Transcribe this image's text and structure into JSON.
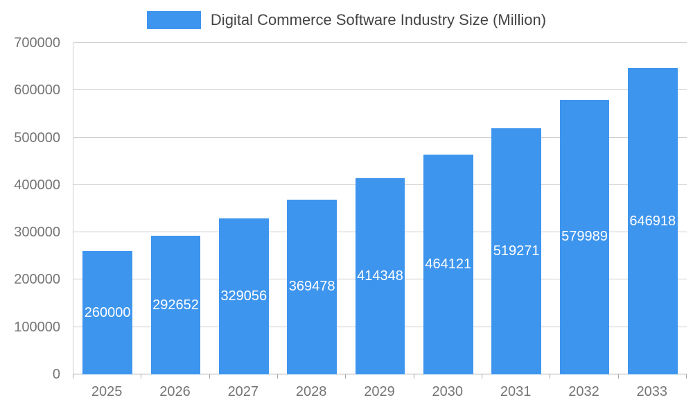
{
  "legend": {
    "label": "Digital Commerce Software Industry Size (Million)"
  },
  "chart_data": {
    "type": "bar",
    "title": "Digital Commerce Software Industry Size (Million)",
    "categories": [
      "2025",
      "2026",
      "2027",
      "2028",
      "2029",
      "2030",
      "2031",
      "2032",
      "2033"
    ],
    "values": [
      260000,
      292652,
      329056,
      369478,
      414348,
      464121,
      519271,
      579989,
      646918
    ],
    "xlabel": "",
    "ylabel": "",
    "ylim": [
      0,
      700000
    ],
    "yticks": [
      0,
      100000,
      200000,
      300000,
      400000,
      500000,
      600000,
      700000
    ],
    "grid": true,
    "legend_position": "top",
    "bar_color": "#3e95ed",
    "value_label_color": "#ffffff",
    "axis_label_color": "#757575",
    "gridline_color": "#cccccc"
  }
}
